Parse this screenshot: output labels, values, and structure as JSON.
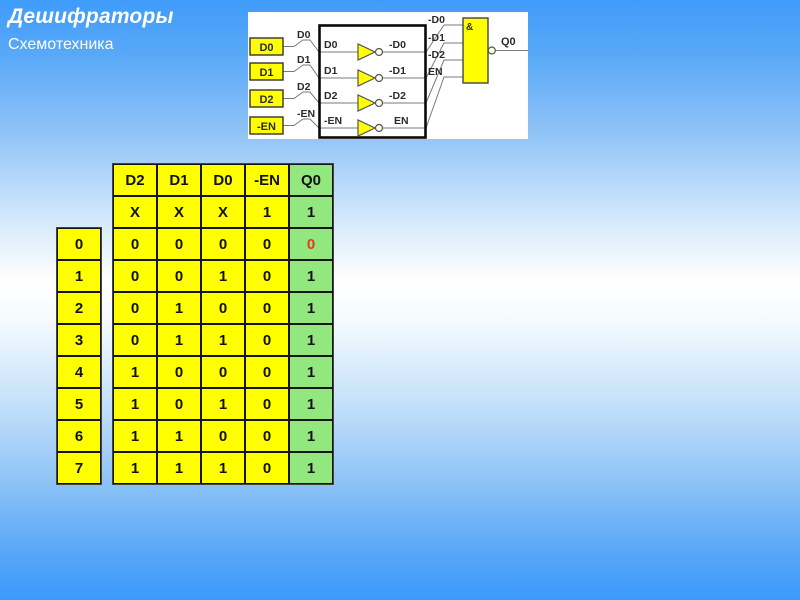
{
  "slide": {
    "title": "Дешифраторы",
    "subtitle": "Схемотехника"
  },
  "circuit": {
    "input_boxes": [
      "D0",
      "D1",
      "D2",
      "-EN"
    ],
    "outer_wire_labels": [
      "D0",
      "D1",
      "D2",
      "-EN"
    ],
    "inv_in_labels": [
      "D0",
      "D1",
      "D2",
      "-EN"
    ],
    "inv_out_labels": [
      "-D0",
      "-D1",
      "-D2",
      "EN"
    ],
    "and_in_labels": [
      "-D0",
      "-D1",
      "-D2",
      "EN"
    ],
    "and_symbol": "&",
    "output_label": "Q0"
  },
  "index_column": [
    "0",
    "1",
    "2",
    "3",
    "4",
    "5",
    "6",
    "7"
  ],
  "truth_table": {
    "headers": [
      "D2",
      "D1",
      "D0",
      "-EN",
      "Q0"
    ],
    "rows": [
      [
        "X",
        "X",
        "X",
        "1",
        "1"
      ],
      [
        "0",
        "0",
        "0",
        "0",
        "0"
      ],
      [
        "0",
        "0",
        "1",
        "0",
        "1"
      ],
      [
        "0",
        "1",
        "0",
        "0",
        "1"
      ],
      [
        "0",
        "1",
        "1",
        "0",
        "1"
      ],
      [
        "1",
        "0",
        "0",
        "0",
        "1"
      ],
      [
        "1",
        "0",
        "1",
        "0",
        "1"
      ],
      [
        "1",
        "1",
        "0",
        "0",
        "1"
      ],
      [
        "1",
        "1",
        "1",
        "0",
        "1"
      ]
    ],
    "red_cell": {
      "row": 1,
      "col": 4
    }
  },
  "colors": {
    "cell_yellow": "#FFFF00",
    "cell_green": "#92E77F",
    "red_value": "#E8391B",
    "table_border": "#151515",
    "wire": "#7A7A7A",
    "background_top": "#3F9BFA",
    "background_middle": "#FFFFFF",
    "background_bottom": "#3D99FC"
  }
}
